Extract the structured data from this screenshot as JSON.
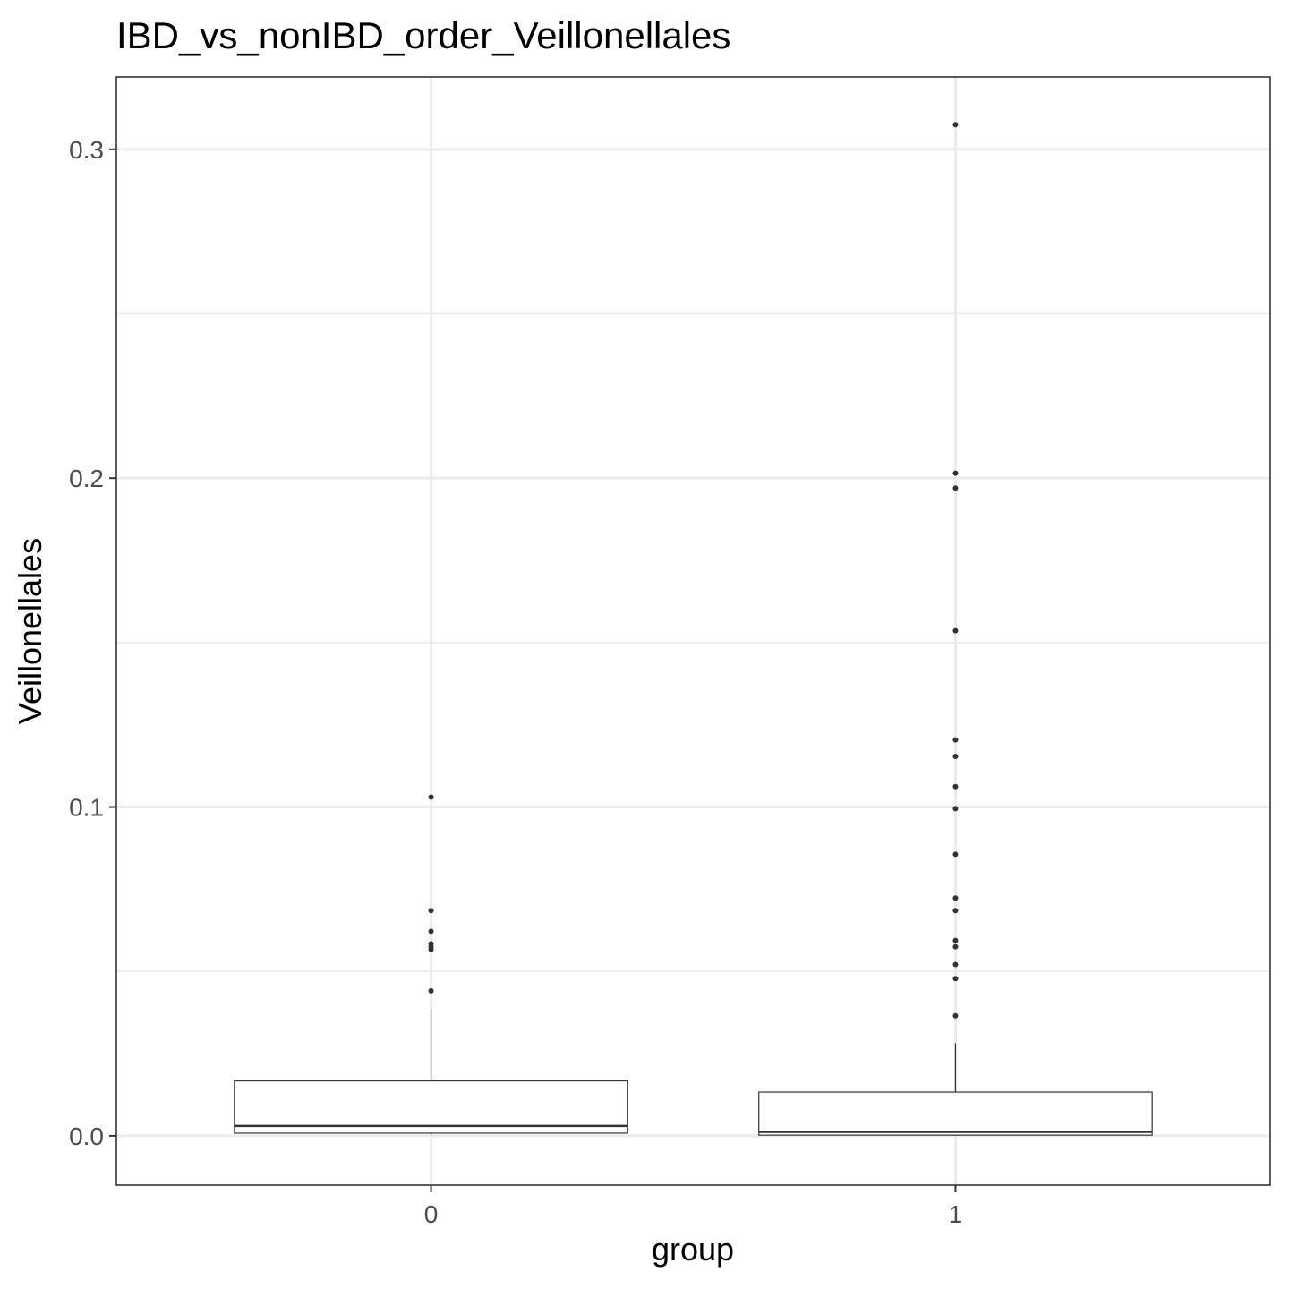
{
  "chart_data": {
    "type": "box",
    "title": "IBD_vs_nonIBD_order_Veillonellales",
    "xlabel": "group",
    "ylabel": "Veillonellales",
    "ylim": [
      -0.015,
      0.322
    ],
    "yticks": [
      "0.0",
      "0.1",
      "0.2",
      "0.3"
    ],
    "ytick_values": [
      0.0,
      0.1,
      0.2,
      0.3
    ],
    "categories": [
      "0",
      "1"
    ],
    "grid": true,
    "series": [
      {
        "category": "0",
        "whisker_low": 0.0,
        "q1": 0.0008,
        "median": 0.003,
        "q3": 0.0167,
        "whisker_high": 0.0387,
        "outliers": [
          0.103,
          0.0685,
          0.0622,
          0.0584,
          0.0575,
          0.0567,
          0.0441
        ]
      },
      {
        "category": "1",
        "whisker_low": 0.0,
        "q1": 0.0002,
        "median": 0.0012,
        "q3": 0.0133,
        "whisker_high": 0.0282,
        "outliers": [
          0.3075,
          0.2015,
          0.197,
          0.1536,
          0.1204,
          0.1154,
          0.1062,
          0.0995,
          0.0856,
          0.0723,
          0.0685,
          0.0594,
          0.0575,
          0.0521,
          0.0478,
          0.0365
        ]
      }
    ],
    "colors": {
      "box_fill": "#ffffff",
      "box_stroke": "#333333",
      "grid": "#ebebeb",
      "tick_text": "#4d4d4d"
    }
  }
}
